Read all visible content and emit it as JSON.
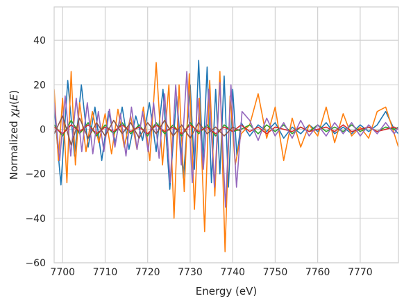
{
  "chart_data": {
    "type": "line",
    "xlabel": "Energy (eV)",
    "ylabel_prefix": "Normalized ",
    "ylabel_chi": "χ",
    "ylabel_mu": "μ",
    "ylabel_paren_open": "(",
    "ylabel_E": "E",
    "ylabel_paren_close": ")",
    "xlim": [
      7698,
      7779
    ],
    "ylim": [
      -60,
      55
    ],
    "xticks": [
      7700,
      7710,
      7720,
      7730,
      7740,
      7750,
      7760,
      7770
    ],
    "yticks": [
      -60,
      -40,
      -20,
      0,
      20,
      40
    ],
    "grid": true,
    "legend": "none",
    "series": [
      {
        "color": "#1f77b4",
        "x": [
          7698.0,
          7699.6,
          7701.2,
          7702.8,
          7704.4,
          7706.0,
          7707.6,
          7709.2,
          7710.8,
          7712.4,
          7714.0,
          7715.6,
          7717.2,
          7718.8,
          7720.4,
          7722.0,
          7723.6,
          7725.2,
          7726.8,
          7728.4,
          7730.0,
          7731.0,
          7732.0,
          7733.0,
          7734.0,
          7735.0,
          7736.0,
          7737.0,
          7738.0,
          7739.0,
          7740.0,
          7741.0,
          7742.0,
          7744.0,
          7746.0,
          7748.0,
          7750.0,
          7752.0,
          7754.0,
          7756.0,
          7758.0,
          7760.0,
          7762.0,
          7764.0,
          7766.0,
          7768.0,
          7770.0,
          7772.0,
          7774.0,
          7776.0,
          7778.0,
          7779.0
        ],
        "y": [
          10,
          -25,
          22,
          -12,
          20,
          -8,
          10,
          -14,
          8,
          -6,
          10,
          -9,
          6,
          -5,
          12,
          -10,
          18,
          -27,
          15,
          -22,
          20,
          -18,
          31,
          -15,
          28,
          -24,
          18,
          -20,
          24,
          -26,
          18,
          -12,
          3,
          -3,
          2,
          -1,
          3,
          -4,
          1,
          -2,
          2,
          -1,
          3,
          -2,
          1,
          -2,
          2,
          -1,
          2,
          8,
          0,
          -2
        ]
      },
      {
        "color": "#ff7f0e",
        "x": [
          7698.0,
          7699.0,
          7700.0,
          7701.0,
          7702.0,
          7703.0,
          7704.0,
          7705.5,
          7707.0,
          7708.5,
          7710.0,
          7711.5,
          7713.0,
          7714.5,
          7716.0,
          7717.5,
          7719.0,
          7720.5,
          7722.0,
          7723.5,
          7725.0,
          7726.2,
          7727.4,
          7728.6,
          7729.8,
          7731.0,
          7732.2,
          7733.4,
          7734.6,
          7735.8,
          7737.0,
          7738.2,
          7739.4,
          7740.6,
          7742.0,
          7744.0,
          7746.0,
          7748.0,
          7750.0,
          7752.0,
          7754.0,
          7756.0,
          7758.0,
          7760.0,
          7762.0,
          7764.0,
          7766.0,
          7768.0,
          7770.0,
          7772.0,
          7774.0,
          7776.0,
          7778.0,
          7779.0
        ],
        "y": [
          18,
          -14,
          14,
          -24,
          26,
          -16,
          12,
          -10,
          8,
          -6,
          7,
          -11,
          9,
          -8,
          6,
          -9,
          10,
          -14,
          30,
          -16,
          20,
          -40,
          20,
          -28,
          25,
          -36,
          14,
          -46,
          22,
          -30,
          26,
          -55,
          15,
          -16,
          -2,
          2,
          16,
          -4,
          10,
          -14,
          5,
          -8,
          2,
          -3,
          10,
          -6,
          7,
          -3,
          1,
          -4,
          8,
          10,
          -2,
          -8
        ]
      },
      {
        "color": "#2ca02c",
        "x": [
          7698.0,
          7700.0,
          7702.0,
          7704.0,
          7706.0,
          7708.0,
          7710.0,
          7712.0,
          7714.0,
          7716.0,
          7718.0,
          7720.0,
          7722.0,
          7724.0,
          7726.0,
          7728.0,
          7730.0,
          7732.0,
          7734.0,
          7736.0,
          7738.0,
          7740.0,
          7742.0,
          7744.0,
          7746.0,
          7748.0,
          7750.0,
          7752.0,
          7754.0,
          7756.0,
          7758.0,
          7760.0,
          7762.0,
          7764.0,
          7766.0,
          7768.0,
          7770.0,
          7772.0,
          7774.0,
          7776.0,
          7778.0,
          7779.0
        ],
        "y": [
          2,
          -3,
          4,
          -2,
          3,
          -3,
          2,
          -2,
          3,
          -2,
          2,
          -3,
          3,
          -2,
          2,
          -3,
          3,
          -2,
          2,
          -3,
          2,
          -1,
          0,
          2,
          -2,
          2,
          -1,
          2,
          -2,
          1,
          -1,
          2,
          -1,
          1,
          -1,
          2,
          -1,
          1,
          -1,
          1,
          0,
          1
        ]
      },
      {
        "color": "#d62728",
        "x": [
          7698.0,
          7700.0,
          7702.0,
          7704.0,
          7706.0,
          7708.0,
          7710.0,
          7712.0,
          7714.0,
          7716.0,
          7718.0,
          7720.0,
          7722.0,
          7724.0,
          7726.0,
          7728.0,
          7730.0,
          7732.0,
          7734.0,
          7736.0,
          7738.0,
          7740.0,
          7742.0,
          7744.0,
          7746.0,
          7748.0,
          7750.0,
          7752.0,
          7754.0,
          7756.0,
          7758.0,
          7760.0,
          7762.0,
          7764.0,
          7766.0,
          7768.0,
          7770.0,
          7772.0,
          7774.0,
          7776.0,
          7778.0,
          7779.0
        ],
        "y": [
          1,
          -2,
          2,
          -1,
          2,
          -2,
          1,
          -1,
          2,
          -1,
          1,
          -2,
          2,
          -1,
          1,
          -2,
          2,
          -1,
          1,
          -2,
          1,
          -1,
          2,
          -1,
          1,
          -2,
          1,
          0,
          -1,
          1,
          -1,
          0,
          1,
          -1,
          2,
          -1,
          0,
          1,
          -1,
          0,
          1,
          0
        ]
      },
      {
        "color": "#9467bd",
        "x": [
          7698.0,
          7699.3,
          7700.6,
          7701.9,
          7703.2,
          7704.5,
          7705.8,
          7707.1,
          7708.4,
          7709.7,
          7711.0,
          7712.3,
          7713.6,
          7714.9,
          7716.2,
          7717.5,
          7718.8,
          7720.1,
          7721.4,
          7722.7,
          7724.0,
          7725.3,
          7726.6,
          7727.9,
          7729.2,
          7730.5,
          7731.8,
          7733.1,
          7734.4,
          7735.7,
          7737.0,
          7738.3,
          7739.6,
          7740.9,
          7742.2,
          7744.0,
          7746.0,
          7748.0,
          7750.0,
          7752.0,
          7754.0,
          7756.0,
          7758.0,
          7760.0,
          7762.0,
          7764.0,
          7766.0,
          7768.0,
          7770.0,
          7772.0,
          7774.0,
          7776.0,
          7778.0,
          7779.0
        ],
        "y": [
          12,
          -14,
          15,
          -12,
          14,
          -10,
          12,
          -11,
          8,
          -10,
          9,
          -8,
          7,
          -12,
          10,
          -9,
          8,
          -10,
          12,
          -13,
          16,
          -24,
          20,
          -16,
          26,
          -24,
          14,
          -18,
          18,
          -26,
          21,
          -35,
          20,
          -26,
          8,
          4,
          -5,
          5,
          -3,
          3,
          -4,
          4,
          -3,
          2,
          -3,
          3,
          -2,
          3,
          -3,
          2,
          -2,
          3,
          -2,
          1
        ]
      },
      {
        "color": "#8c564b",
        "x": [
          7698.0,
          7700.0,
          7702.0,
          7704.0,
          7706.0,
          7708.0,
          7710.0,
          7712.0,
          7714.0,
          7716.0,
          7718.0,
          7720.0,
          7722.0,
          7724.0,
          7726.0,
          7728.0,
          7730.0,
          7732.0,
          7734.0,
          7736.0,
          7738.0,
          7740.0,
          7742.0
        ],
        "y": [
          -2,
          6,
          -7,
          5,
          -4,
          3,
          -3,
          4,
          -2,
          3,
          -4,
          3,
          -2,
          4,
          -3,
          2,
          -4,
          3,
          -2,
          1,
          -3,
          1,
          -1
        ]
      }
    ]
  }
}
